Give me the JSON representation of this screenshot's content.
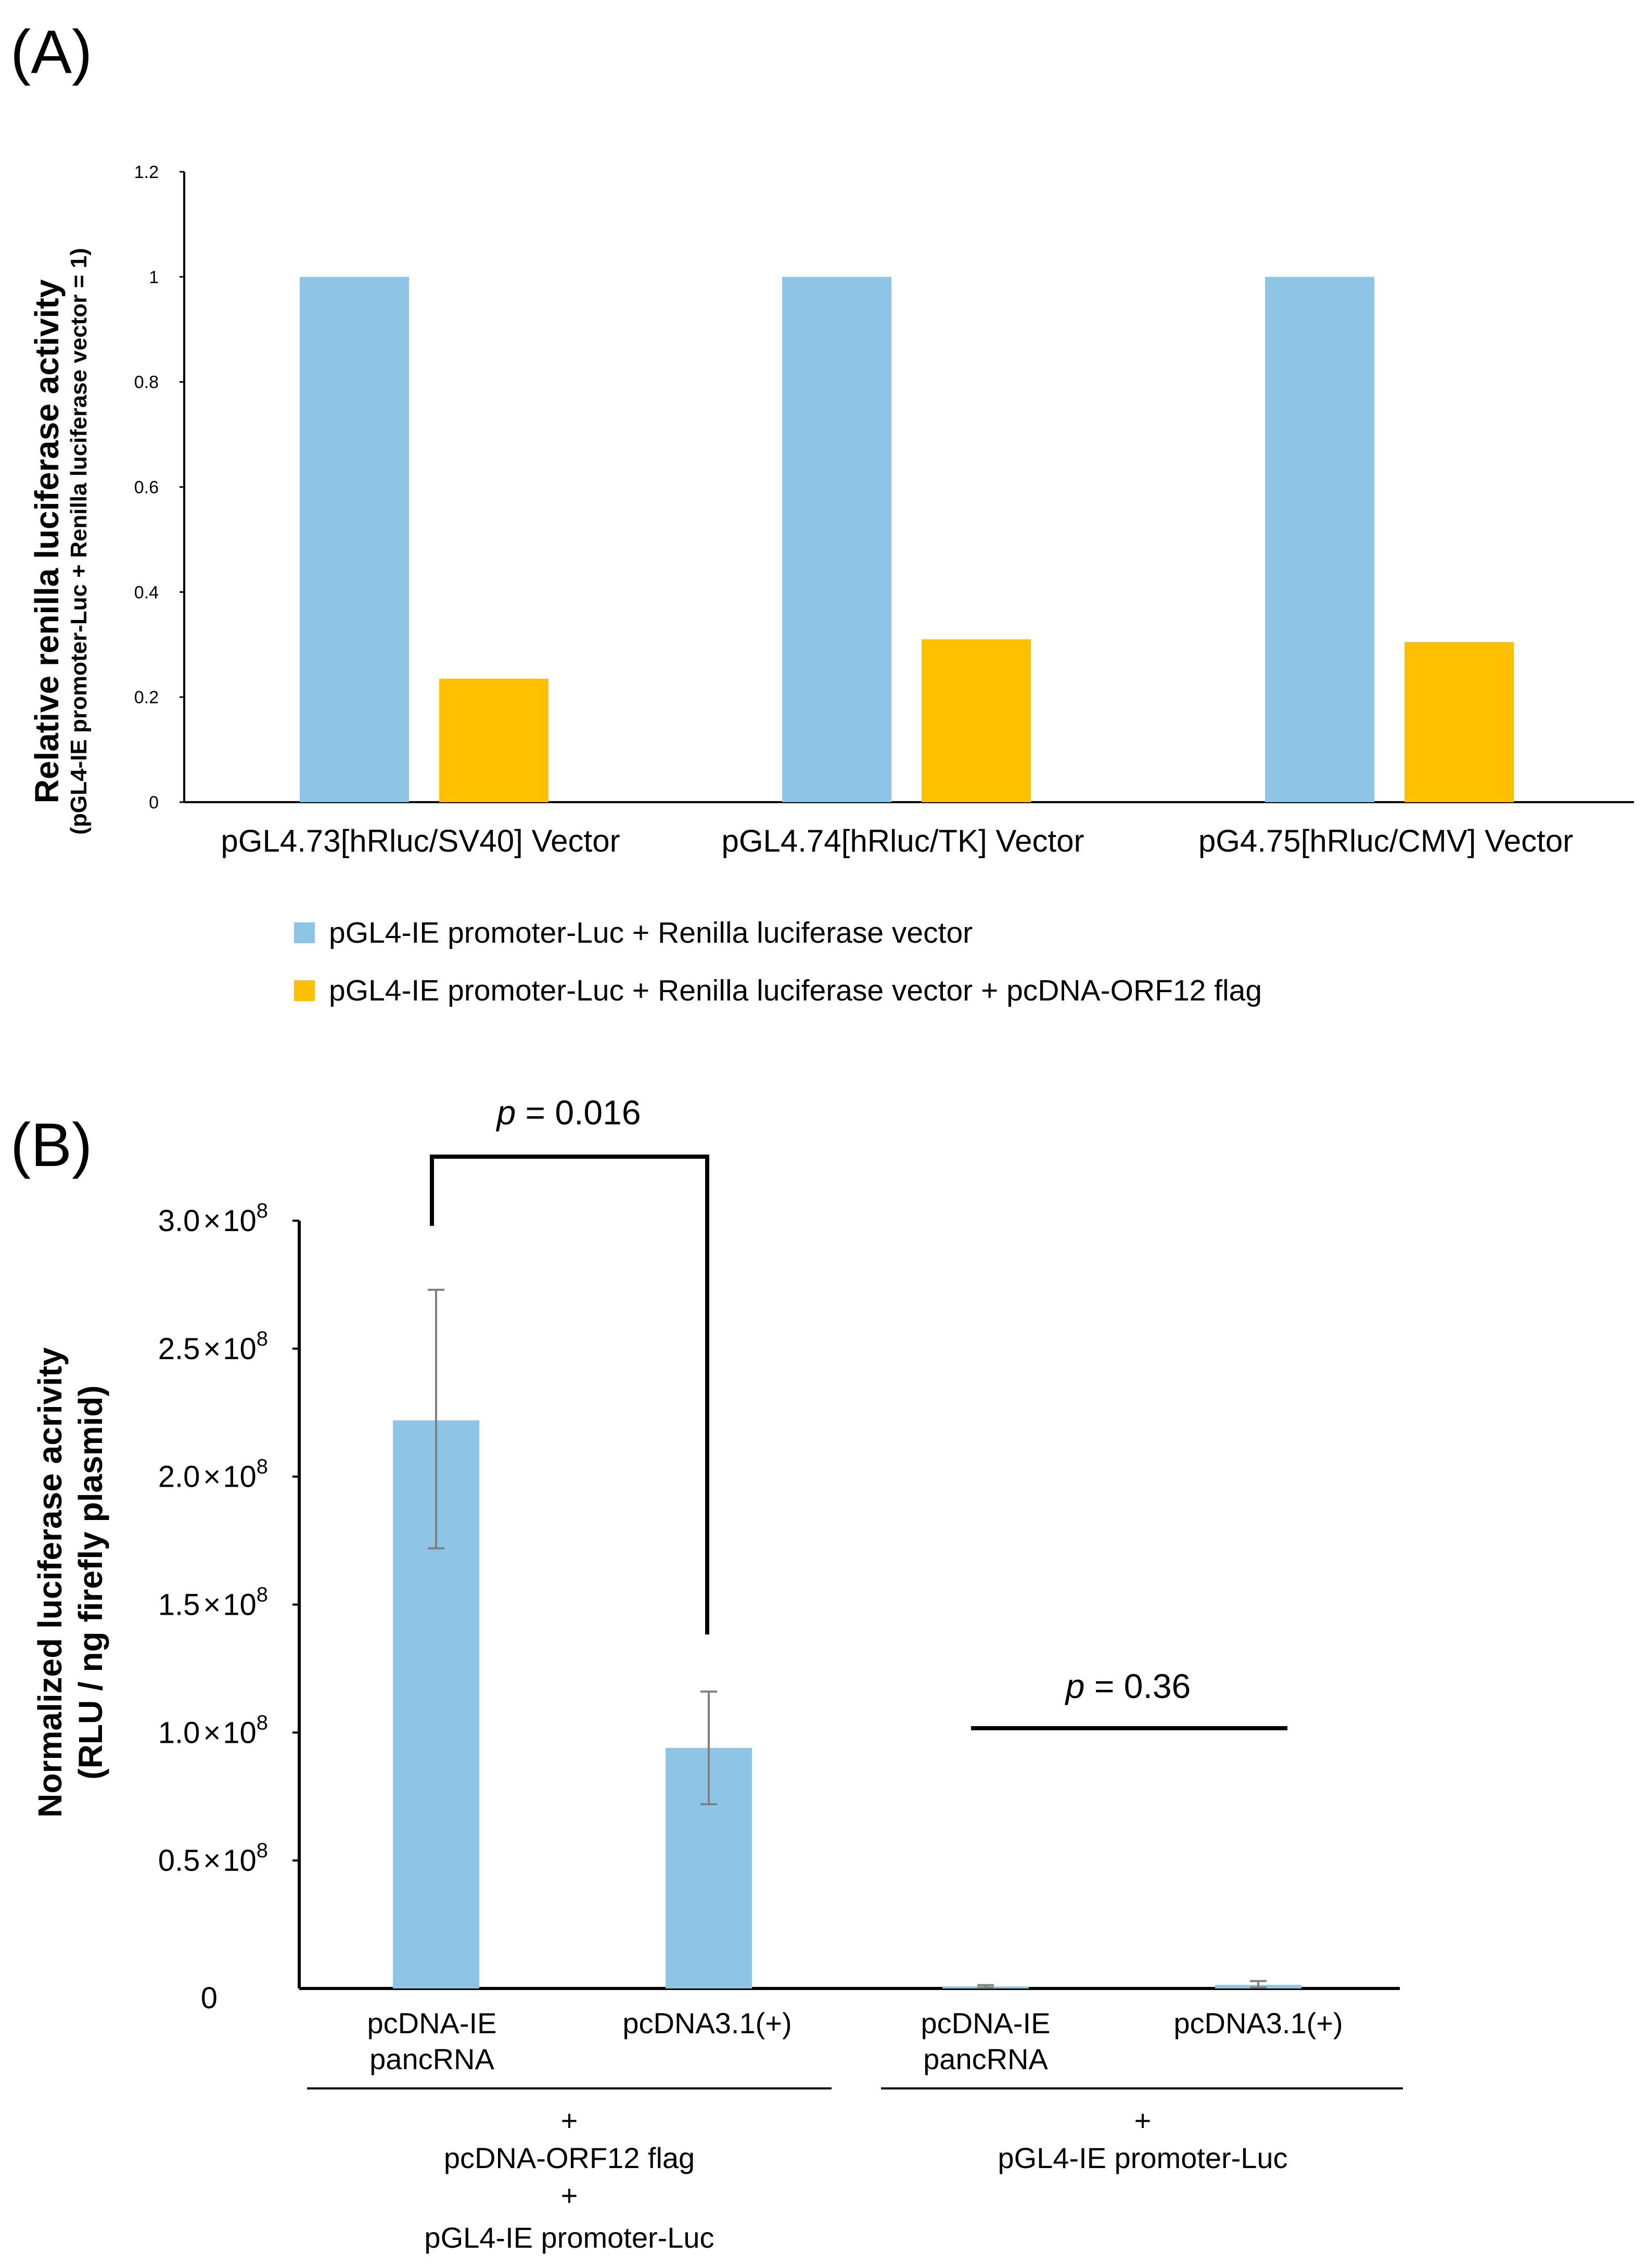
{
  "chart_data": [
    {
      "panel": "(A)",
      "type": "bar",
      "title": "",
      "xlabel": "",
      "ylabel": "Relative renilla luciferase activity",
      "ylabel_sub": "(pGL4-IE promoter-Luc + Renilla luciferase vector = 1)",
      "ylim": [
        0,
        1.2
      ],
      "yticks": [
        "0",
        "0.2",
        "0.4",
        "0.6",
        "0.8",
        "1",
        "1.2"
      ],
      "categories": [
        "pGL4.73[hRluc/SV40] Vector",
        "pGL4.74[hRluc/TK] Vector",
        "pG4.75[hRluc/CMV] Vector"
      ],
      "series": [
        {
          "name": "pGL4-IE promoter-Luc + Renilla luciferase vector",
          "color": "#8EC4E6",
          "values": [
            1.0,
            1.0,
            1.0
          ]
        },
        {
          "name": "pGL4-IE promoter-Luc + Renilla luciferase vector + pcDNA-ORF12 flag",
          "color": "#FFC000",
          "values": [
            0.235,
            0.31,
            0.305
          ]
        }
      ],
      "legend_position": "bottom"
    },
    {
      "panel": "(B)",
      "type": "bar",
      "title": "",
      "xlabel": "",
      "ylabel": "Normalized  luciferase acrivity",
      "ylabel_sub": "(RLU / ng firefly plasmid)",
      "ylim": [
        0,
        300000000
      ],
      "ytick_values": [
        0,
        50000000,
        100000000,
        150000000,
        200000000,
        250000000,
        300000000
      ],
      "yticks": [
        {
          "mant": "0",
          "times": "",
          "exp": ""
        },
        {
          "mant": "0.5",
          "times": "×",
          "exp": "8"
        },
        {
          "mant": "1.0",
          "times": "×",
          "exp": "8"
        },
        {
          "mant": "1.5",
          "times": "×",
          "exp": "8"
        },
        {
          "mant": "2.0",
          "times": "×",
          "exp": "8"
        },
        {
          "mant": "2.5",
          "times": "×",
          "exp": "8"
        },
        {
          "mant": "3.0",
          "times": "×",
          "exp": "8"
        }
      ],
      "ytick_base": "10",
      "bar_color": "#8EC4E6",
      "bars": [
        {
          "line1": "pcDNA-IE",
          "line2": "pancRNA",
          "value": 222000000,
          "err_low": 172000000,
          "err_high": 273000000
        },
        {
          "line1": "pcDNA3.1(+)",
          "line2": "",
          "value": 94000000,
          "err_low": 72000000,
          "err_high": 116000000
        },
        {
          "line1": "pcDNA-IE",
          "line2": "pancRNA",
          "value": 800000,
          "err_low": 300000,
          "err_high": 1300000
        },
        {
          "line1": "pcDNA3.1(+)",
          "line2": "",
          "value": 1400000,
          "err_low": 400000,
          "err_high": 2900000
        }
      ],
      "groups": [
        {
          "plus1": "+",
          "line1": "pcDNA-ORF12 flag",
          "plus2": "+",
          "line2": "pGL4-IE promoter-Luc"
        },
        {
          "plus1": "+",
          "line1": "pGL4-IE promoter-Luc"
        }
      ],
      "annotations": [
        {
          "p": "p",
          "rest": " = 0.016"
        },
        {
          "p": "p",
          "rest": " = 0.36"
        }
      ]
    }
  ]
}
